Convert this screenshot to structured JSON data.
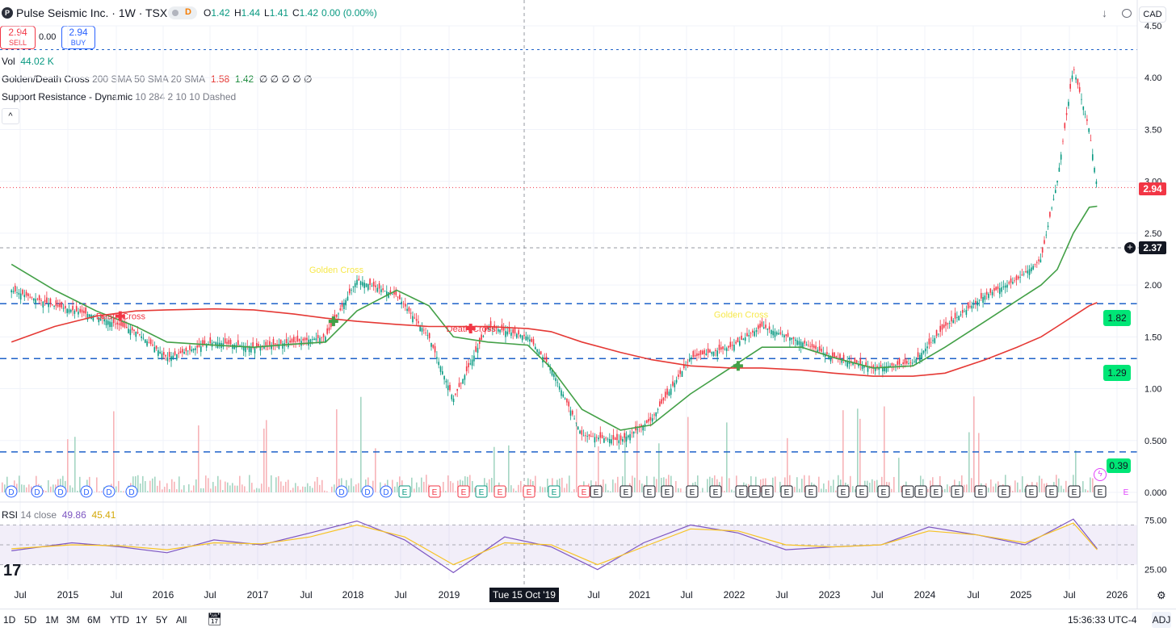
{
  "header": {
    "logo_letter": "P",
    "symbol_title": "Pulse Seismic Inc. · 1W · TSX",
    "delayed_badge": "D",
    "ohlc": {
      "o_label": "O",
      "o": "1.42",
      "h_label": "H",
      "h": "1.44",
      "l_label": "L",
      "l": "1.41",
      "c_label": "C",
      "c": "1.42",
      "change": "0.00 (0.00%)"
    },
    "currency": "CAD",
    "icons": [
      "download-icon",
      "fullscreen-icon",
      "snapshot-icon"
    ]
  },
  "trade": {
    "sell_price": "2.94",
    "sell_label": "SELL",
    "spread": "0.00",
    "buy_price": "2.94",
    "buy_label": "BUY"
  },
  "legend": {
    "vol_name": "Vol",
    "vol_value": "44.02 K",
    "gdc_name": "Golden/Death Cross",
    "gdc_params": "200 SMA 50 SMA 20 SMA",
    "gdc_v1": "1.58",
    "gdc_v2": "1.42",
    "gdc_rest": "∅ ∅ ∅ ∅ ∅",
    "sr_name": "Support Resistance - Dynamic",
    "sr_params": "10 284 2 10 10 Dashed",
    "collapse_glyph": "^"
  },
  "rsi": {
    "name": "RSI",
    "params": "14 close",
    "value": "49.86",
    "ma_value": "45.41"
  },
  "labels": {
    "golden_cross": "Golden Cross",
    "death_cross": "Death Cross",
    "crosshair_date": "Tue 15 Oct '19",
    "last_price": "2.94",
    "crosshair_price": "2.37",
    "sr_levels": [
      "1.82",
      "1.29",
      "0.39"
    ],
    "tv_logo": "17"
  },
  "bottom": {
    "ranges": [
      "1D",
      "5D",
      "1M",
      "3M",
      "6M",
      "YTD",
      "1Y",
      "5Y",
      "All"
    ],
    "clock": "15:36:33 UTC-4",
    "adj": "ADJ"
  },
  "chart_data": [
    {
      "type": "line",
      "title": "Pulse Seismic Inc. · 1W · TSX",
      "xlabel": "",
      "ylabel": "",
      "ylim": [
        0.0,
        4.5
      ],
      "y_ticks": [
        "0.000",
        "0.500",
        "1.00",
        "1.50",
        "2.00",
        "2.50",
        "3.00",
        "3.50",
        "4.00",
        "4.50"
      ],
      "x_ticks": [
        "Jul",
        "2015",
        "Jul",
        "2016",
        "Jul",
        "2017",
        "Jul",
        "2018",
        "Jul",
        "2019",
        "Jul",
        "2021",
        "Jul",
        "2022",
        "Jul",
        "2023",
        "Jul",
        "2024",
        "Jul",
        "2025",
        "Jul",
        "2026"
      ],
      "x": [
        "2014-06",
        "2014-11",
        "2015-04",
        "2015-09",
        "2016-01",
        "2016-07",
        "2016-12",
        "2017-05",
        "2017-09",
        "2018-01",
        "2018-06",
        "2018-10",
        "2019-01",
        "2019-05",
        "2019-10",
        "2020-01",
        "2020-05",
        "2020-10",
        "2021-02",
        "2021-07",
        "2021-12",
        "2022-04",
        "2022-09",
        "2023-01",
        "2023-06",
        "2023-11",
        "2024-03",
        "2024-08",
        "2024-12",
        "2025-03",
        "2025-05",
        "2025-07",
        "2025-09",
        "2025-10"
      ],
      "series": [
        {
          "name": "close",
          "color": "#131722",
          "values": [
            1.95,
            1.8,
            1.7,
            1.55,
            1.3,
            1.45,
            1.4,
            1.45,
            1.5,
            2.05,
            1.9,
            1.5,
            0.9,
            1.6,
            1.5,
            1.2,
            0.55,
            0.5,
            0.7,
            1.3,
            1.4,
            1.6,
            1.45,
            1.3,
            1.2,
            1.25,
            1.6,
            1.9,
            2.05,
            2.25,
            3.0,
            4.1,
            3.5,
            2.94
          ]
        },
        {
          "name": "50 SMA",
          "color": "#43a047",
          "values": [
            2.2,
            1.95,
            1.75,
            1.6,
            1.45,
            1.42,
            1.4,
            1.43,
            1.45,
            1.75,
            1.95,
            1.8,
            1.5,
            1.45,
            1.42,
            1.2,
            0.8,
            0.6,
            0.65,
            0.95,
            1.2,
            1.4,
            1.4,
            1.3,
            1.2,
            1.22,
            1.4,
            1.65,
            1.85,
            2.0,
            2.15,
            2.5,
            2.75,
            2.76
          ]
        },
        {
          "name": "200 SMA",
          "color": "#e53935",
          "values": [
            1.45,
            1.6,
            1.7,
            1.75,
            1.76,
            1.77,
            1.76,
            1.72,
            1.68,
            1.65,
            1.62,
            1.6,
            1.6,
            1.6,
            1.58,
            1.55,
            1.45,
            1.35,
            1.28,
            1.22,
            1.2,
            1.2,
            1.18,
            1.15,
            1.12,
            1.12,
            1.15,
            1.28,
            1.4,
            1.5,
            1.6,
            1.7,
            1.8,
            1.83
          ]
        }
      ],
      "support_resistance": [
        1.82,
        1.29,
        0.39
      ],
      "last_price": 2.94,
      "crosshair_price": 2.37,
      "events": [
        {
          "kind": "death-cross",
          "x": "2015-07",
          "y": 1.7
        },
        {
          "kind": "golden-cross",
          "x": "2017-10",
          "y": 1.65
        },
        {
          "kind": "death-cross",
          "x": "2019-03",
          "y": 1.58
        },
        {
          "kind": "golden-cross",
          "x": "2022-01",
          "y": 1.22
        }
      ],
      "event_markers": [
        "D",
        "D",
        "D",
        "D",
        "D",
        "D",
        "D",
        "D",
        "D",
        "E",
        "E",
        "E",
        "E",
        "E",
        "E",
        "E",
        "E",
        "E",
        "E",
        "E",
        "E",
        "E",
        "E",
        "E",
        "E",
        "E",
        "E",
        "E",
        "E",
        "E",
        "E",
        "E",
        "E",
        "E",
        "E",
        "E",
        "E",
        "E",
        "E",
        "E",
        "E",
        "E",
        "E",
        "E",
        "E"
      ]
    },
    {
      "type": "line",
      "title": "RSI 14 close",
      "ylim": [
        15,
        85
      ],
      "y_ticks": [
        "25.00",
        "75.00"
      ],
      "bands": [
        70,
        50,
        30
      ],
      "x": [
        "2014-06",
        "2015-01",
        "2015-07",
        "2016-01",
        "2016-07",
        "2017-01",
        "2017-07",
        "2018-01",
        "2018-07",
        "2019-01",
        "2019-07",
        "2020-01",
        "2020-07",
        "2021-01",
        "2021-07",
        "2022-01",
        "2022-07",
        "2023-01",
        "2023-07",
        "2024-01",
        "2024-07",
        "2025-01",
        "2025-07",
        "2025-10"
      ],
      "series": [
        {
          "name": "RSI",
          "color": "#7e57c2",
          "values": [
            44,
            52,
            48,
            42,
            55,
            50,
            62,
            74,
            55,
            22,
            58,
            48,
            25,
            52,
            70,
            62,
            45,
            48,
            50,
            68,
            60,
            50,
            76,
            46
          ]
        },
        {
          "name": "RSI MA",
          "color": "#f7c325",
          "values": [
            46,
            50,
            49,
            45,
            52,
            51,
            58,
            70,
            58,
            30,
            52,
            50,
            30,
            48,
            66,
            64,
            50,
            48,
            50,
            64,
            60,
            52,
            72,
            45
          ]
        }
      ]
    }
  ]
}
